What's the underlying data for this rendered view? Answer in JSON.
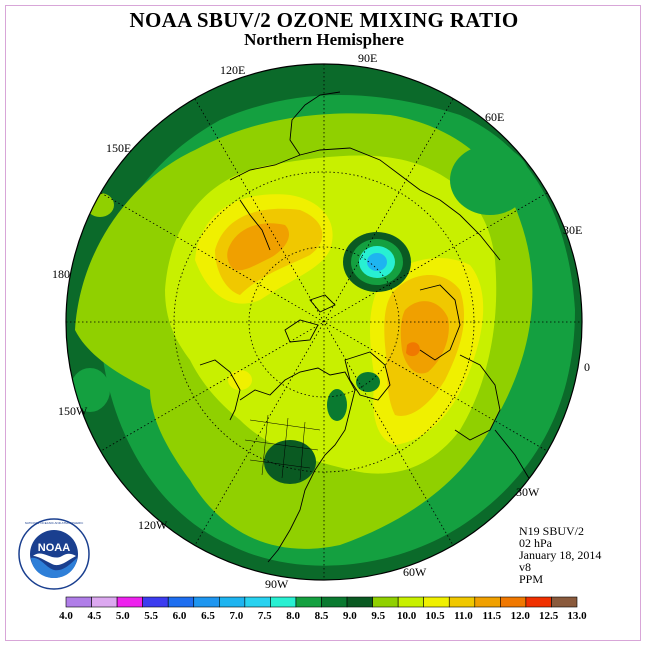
{
  "title": "NOAA SBUV/2 OZONE MIXING RATIO",
  "subtitle": "Northern Hemisphere",
  "longitude_labels": {
    "lon_90e": "90E",
    "lon_60e": "60E",
    "lon_30e": "30E",
    "lon_0": "0",
    "lon_30w": "30W",
    "lon_60w": "60W",
    "lon_90w": "90W",
    "lon_120w": "120W",
    "lon_150w": "150W",
    "lon_180": "180",
    "lon_150e": "150E",
    "lon_120e": "120E"
  },
  "info": {
    "instrument": "N19 SBUV/2",
    "level": "02 hPa",
    "date": "January 18, 2014",
    "version": "v8",
    "units": "PPM"
  },
  "logo": {
    "text": "NOAA",
    "ring_text": "NATIONAL OCEANIC AND ATMOSPHERIC ADMINISTRATION · U.S. DEPARTMENT OF COMMERCE"
  },
  "legend": {
    "ticks": [
      "4.0",
      "4.5",
      "5.0",
      "5.5",
      "6.0",
      "6.5",
      "7.0",
      "7.5",
      "8.0",
      "8.5",
      "9.0",
      "9.5",
      "10.0",
      "10.5",
      "11.0",
      "11.5",
      "12.0",
      "12.5",
      "13.0"
    ],
    "colors": [
      "#b07ee8",
      "#dca8f0",
      "#ee22ee",
      "#3c3cf0",
      "#1e6ef0",
      "#1e96f0",
      "#1eb4f0",
      "#28d2f0",
      "#28f0d2",
      "#14a040",
      "#0a7a30",
      "#0a5a22",
      "#90d000",
      "#c8f000",
      "#f0f000",
      "#f0c800",
      "#f0a000",
      "#f07800",
      "#f03000",
      "#8a5a3c"
    ],
    "colors_used": [
      "#b07ee8",
      "#dca8f0",
      "#ee22ee",
      "#3c3cf0",
      "#1e6ef0",
      "#1e96f0",
      "#1eb4f0",
      "#28d2f0",
      "#28f0d2",
      "#14a040",
      "#0a7a30",
      "#0a5a22",
      "#90d000",
      "#c8f000",
      "#f0f000",
      "#f0c800",
      "#f0a000",
      "#f07800",
      "#f03000",
      "#8a5a3c"
    ]
  }
}
